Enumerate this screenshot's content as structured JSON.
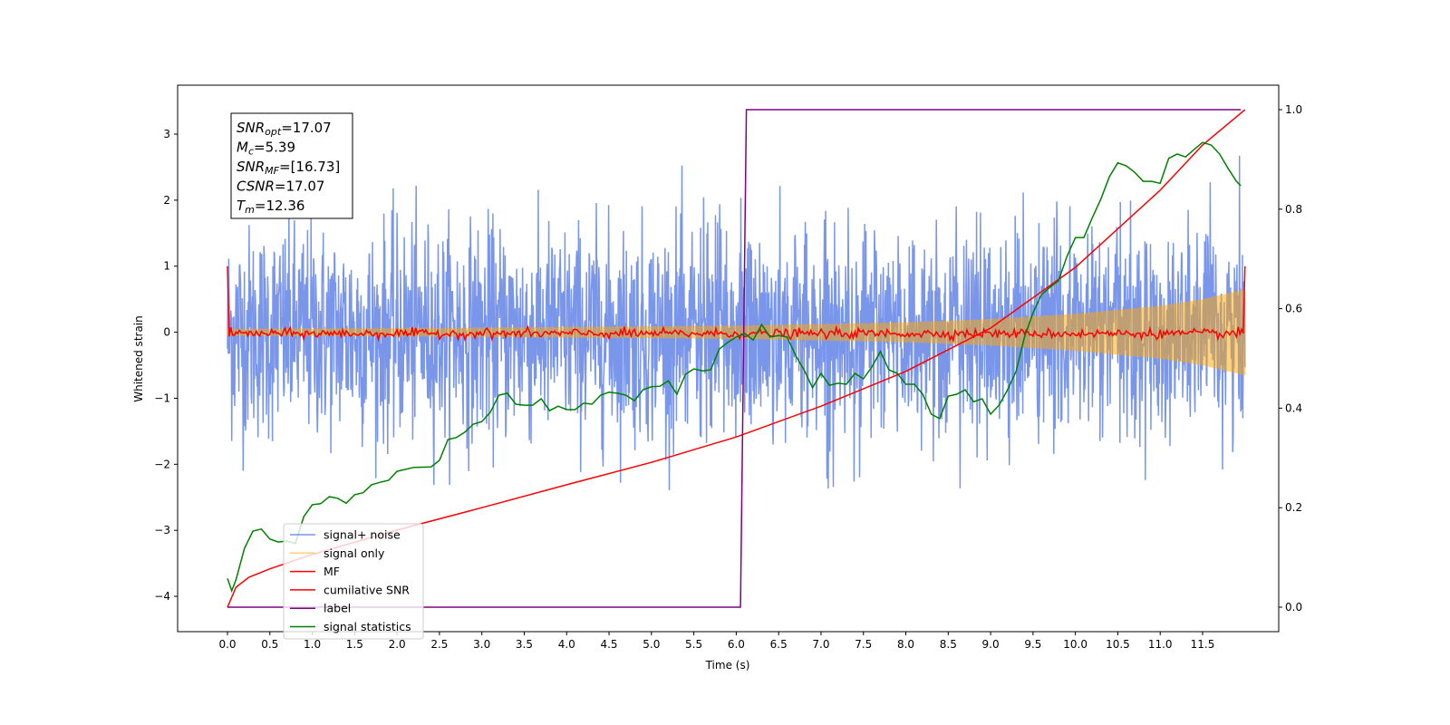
{
  "chart_data": {
    "type": "line",
    "xlabel": "Time (s)",
    "ylabel": "Whitened strain",
    "xlim": [
      -0.6,
      12.6
    ],
    "ylim": [
      -4.55,
      3.75
    ],
    "y2lim": [
      -0.05,
      1.05
    ],
    "xticks": [
      "0.0",
      "0.5",
      "1.0",
      "1.5",
      "2.0",
      "2.5",
      "3.0",
      "3.5",
      "4.0",
      "4.5",
      "5.0",
      "5.5",
      "6.0",
      "6.5",
      "7.0",
      "7.5",
      "8.0",
      "8.5",
      "9.0",
      "9.5",
      "10.0",
      "10.5",
      "11.0",
      "11.5"
    ],
    "yticks": [
      "−4",
      "−3",
      "−2",
      "−1",
      "0",
      "1",
      "2",
      "3"
    ],
    "y2ticks": [
      "0.0",
      "0.2",
      "0.4",
      "0.6",
      "0.8",
      "1.0"
    ],
    "grid": false,
    "legend_position": "lower-left",
    "annotation": [
      {
        "base": "SNR",
        "sub": "opt",
        "value": "=17.07"
      },
      {
        "base": "M",
        "sub": "c",
        "value": "=5.39"
      },
      {
        "base": "SNR",
        "sub": "MF",
        "value": "=[16.73]"
      },
      {
        "base": "CSNR",
        "sub": "",
        "value": "=17.07"
      },
      {
        "base": "T",
        "sub": "m",
        "value": "=12.36"
      }
    ],
    "series": [
      {
        "name": "signal+ noise",
        "color": "#4169e1",
        "axis": "left",
        "note_amplitude_std": 0.8
      },
      {
        "name": "signal only",
        "color": "#ffa500",
        "axis": "left",
        "envelope": {
          "t": [
            0,
            3,
            6,
            8,
            9,
            10,
            11,
            11.5,
            12
          ],
          "amp": [
            0.05,
            0.07,
            0.1,
            0.15,
            0.2,
            0.28,
            0.4,
            0.5,
            0.65
          ]
        }
      },
      {
        "name": "MF",
        "color": "#ff0000",
        "axis": "left",
        "edge_value": 1.0,
        "noise_amplitude": 0.05
      },
      {
        "name": "cumilative SNR",
        "color": "#ff0000",
        "axis": "right",
        "t": [
          0,
          0.1,
          0.25,
          0.5,
          1,
          2,
          3,
          4,
          5,
          6,
          7,
          8,
          9,
          10,
          11,
          11.5,
          12
        ],
        "values": [
          0,
          0.04,
          0.06,
          0.077,
          0.106,
          0.155,
          0.2,
          0.246,
          0.291,
          0.342,
          0.404,
          0.474,
          0.561,
          0.683,
          0.838,
          0.929,
          1.0
        ]
      },
      {
        "name": "label",
        "color": "#800080",
        "axis": "right",
        "t": [
          0,
          6.05,
          6.12,
          11.95
        ],
        "values": [
          0,
          0,
          1,
          1
        ]
      },
      {
        "name": "signal statistics",
        "color": "#008000",
        "axis": "right",
        "t": [
          0,
          0.05,
          0.1,
          0.2,
          0.3,
          0.4,
          0.5,
          0.6,
          0.7,
          0.8,
          0.9,
          1.0,
          1.1,
          1.2,
          1.3,
          1.4,
          1.5,
          1.6,
          1.7,
          1.8,
          1.9,
          2.0,
          2.2,
          2.4,
          2.5,
          2.6,
          2.7,
          2.8,
          2.9,
          3.0,
          3.1,
          3.2,
          3.3,
          3.4,
          3.5,
          3.6,
          3.7,
          3.8,
          3.9,
          4.0,
          4.1,
          4.2,
          4.3,
          4.4,
          4.5,
          4.6,
          4.7,
          4.8,
          4.9,
          5.0,
          5.1,
          5.2,
          5.3,
          5.4,
          5.5,
          5.6,
          5.7,
          5.8,
          5.9,
          6.0,
          6.1,
          6.2,
          6.3,
          6.4,
          6.5,
          6.6,
          6.7,
          6.8,
          6.9,
          7.0,
          7.1,
          7.2,
          7.3,
          7.4,
          7.5,
          7.6,
          7.7,
          7.8,
          7.9,
          8.0,
          8.1,
          8.2,
          8.3,
          8.4,
          8.5,
          8.6,
          8.7,
          8.8,
          8.9,
          9.0,
          9.1,
          9.2,
          9.3,
          9.4,
          9.5,
          9.6,
          9.7,
          9.8,
          9.9,
          10.0,
          10.1,
          10.2,
          10.3,
          10.4,
          10.5,
          10.6,
          10.7,
          10.8,
          10.9,
          11.0,
          11.1,
          11.2,
          11.3,
          11.4,
          11.5,
          11.6,
          11.7,
          11.8,
          11.9,
          11.95
        ],
        "values": [
          0.058,
          0.033,
          0.055,
          0.118,
          0.153,
          0.157,
          0.137,
          0.131,
          0.133,
          0.128,
          0.182,
          0.206,
          0.208,
          0.222,
          0.219,
          0.209,
          0.226,
          0.23,
          0.246,
          0.251,
          0.255,
          0.273,
          0.281,
          0.282,
          0.295,
          0.337,
          0.341,
          0.352,
          0.368,
          0.373,
          0.392,
          0.426,
          0.43,
          0.408,
          0.406,
          0.406,
          0.419,
          0.395,
          0.404,
          0.397,
          0.397,
          0.41,
          0.408,
          0.426,
          0.432,
          0.43,
          0.426,
          0.415,
          0.437,
          0.443,
          0.444,
          0.455,
          0.428,
          0.468,
          0.479,
          0.475,
          0.477,
          0.519,
          0.532,
          0.543,
          0.55,
          0.537,
          0.568,
          0.543,
          0.546,
          0.543,
          0.506,
          0.477,
          0.441,
          0.47,
          0.446,
          0.45,
          0.448,
          0.47,
          0.459,
          0.483,
          0.514,
          0.477,
          0.47,
          0.448,
          0.448,
          0.428,
          0.388,
          0.379,
          0.424,
          0.428,
          0.437,
          0.413,
          0.419,
          0.388,
          0.406,
          0.437,
          0.474,
          0.543,
          0.592,
          0.628,
          0.643,
          0.656,
          0.705,
          0.743,
          0.743,
          0.783,
          0.82,
          0.865,
          0.893,
          0.887,
          0.874,
          0.856,
          0.856,
          0.852,
          0.902,
          0.911,
          0.905,
          0.92,
          0.934,
          0.929,
          0.911,
          0.882,
          0.856,
          0.847
        ]
      }
    ]
  }
}
